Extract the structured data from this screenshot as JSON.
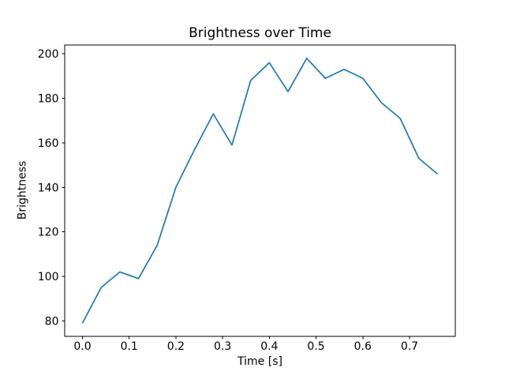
{
  "chart_data": {
    "type": "line",
    "title": "Brightness over Time",
    "xlabel": "Time [s]",
    "ylabel": "Brightness",
    "x": [
      0.0,
      0.04,
      0.08,
      0.12,
      0.16,
      0.2,
      0.24,
      0.28,
      0.32,
      0.36,
      0.4,
      0.44,
      0.48,
      0.52,
      0.56,
      0.6,
      0.64,
      0.68,
      0.72,
      0.76
    ],
    "y": [
      79,
      95,
      102,
      99,
      114,
      140,
      157,
      173,
      159,
      188,
      196,
      183,
      198,
      189,
      193,
      189,
      178,
      171,
      153,
      146
    ],
    "xlim": [
      -0.038,
      0.798
    ],
    "ylim": [
      73.05,
      203.95
    ],
    "xticks": [
      0.0,
      0.1,
      0.2,
      0.3,
      0.4,
      0.5,
      0.6,
      0.7
    ],
    "xtick_labels": [
      "0.0",
      "0.1",
      "0.2",
      "0.3",
      "0.4",
      "0.5",
      "0.6",
      "0.7"
    ],
    "yticks": [
      80,
      100,
      120,
      140,
      160,
      180,
      200
    ],
    "ytick_labels": [
      "80",
      "100",
      "120",
      "140",
      "160",
      "180",
      "200"
    ],
    "line_color": "#1f77b4",
    "axis_color": "#000000",
    "background_color": "#ffffff",
    "grid": false,
    "legend": "none"
  }
}
